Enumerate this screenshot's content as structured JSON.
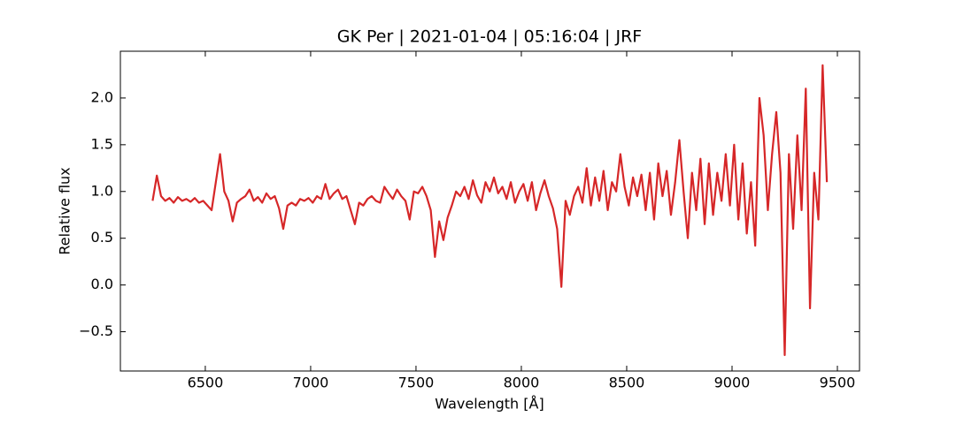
{
  "chart_data": {
    "type": "line",
    "title": "GK Per | 2021-01-04 | 05:16:04 | JRF",
    "xlabel": "Wavelength [Å]",
    "ylabel": "Relative flux",
    "xlim": [
      6097,
      9605
    ],
    "ylim": [
      -0.92,
      2.5
    ],
    "xticks": [
      6500,
      7000,
      7500,
      8000,
      8500,
      9000,
      9500
    ],
    "yticks": [
      {
        "value": -0.5,
        "label": "−0.5"
      },
      {
        "value": 0,
        "label": "0.0"
      },
      0.5,
      {
        "value": 1,
        "label": "1.0"
      },
      1.5,
      {
        "value": 2,
        "label": "2.0"
      }
    ],
    "grid": false,
    "x": [
      6250,
      6270,
      6290,
      6310,
      6330,
      6350,
      6370,
      6390,
      6410,
      6430,
      6450,
      6470,
      6490,
      6510,
      6530,
      6550,
      6570,
      6590,
      6610,
      6630,
      6650,
      6670,
      6690,
      6710,
      6730,
      6750,
      6770,
      6790,
      6810,
      6830,
      6850,
      6870,
      6890,
      6910,
      6930,
      6950,
      6970,
      6990,
      7010,
      7030,
      7050,
      7070,
      7090,
      7110,
      7130,
      7150,
      7170,
      7190,
      7210,
      7230,
      7250,
      7270,
      7290,
      7310,
      7330,
      7350,
      7370,
      7390,
      7410,
      7430,
      7450,
      7470,
      7490,
      7510,
      7530,
      7550,
      7570,
      7590,
      7610,
      7630,
      7650,
      7670,
      7690,
      7710,
      7730,
      7750,
      7770,
      7790,
      7810,
      7830,
      7850,
      7870,
      7890,
      7910,
      7930,
      7950,
      7970,
      7990,
      8010,
      8030,
      8050,
      8070,
      8090,
      8110,
      8130,
      8150,
      8170,
      8190,
      8210,
      8230,
      8250,
      8270,
      8290,
      8310,
      8330,
      8350,
      8370,
      8390,
      8410,
      8430,
      8450,
      8470,
      8490,
      8510,
      8530,
      8550,
      8570,
      8590,
      8610,
      8630,
      8650,
      8670,
      8690,
      8710,
      8730,
      8750,
      8770,
      8790,
      8810,
      8830,
      8850,
      8870,
      8890,
      8910,
      8930,
      8950,
      8970,
      8990,
      9010,
      9030,
      9050,
      9070,
      9090,
      9110,
      9130,
      9150,
      9170,
      9190,
      9210,
      9230,
      9250,
      9270,
      9290,
      9310,
      9330,
      9350,
      9370,
      9390,
      9410,
      9430,
      9450
    ],
    "series": [
      {
        "color": "#d62728",
        "values": [
          0.9,
          1.17,
          0.95,
          0.9,
          0.93,
          0.88,
          0.94,
          0.9,
          0.92,
          0.89,
          0.93,
          0.88,
          0.9,
          0.85,
          0.8,
          1.1,
          1.4,
          1.0,
          0.9,
          0.68,
          0.88,
          0.92,
          0.95,
          1.02,
          0.9,
          0.94,
          0.88,
          0.98,
          0.92,
          0.95,
          0.82,
          0.6,
          0.85,
          0.88,
          0.85,
          0.92,
          0.9,
          0.93,
          0.88,
          0.95,
          0.92,
          1.08,
          0.92,
          0.98,
          1.02,
          0.92,
          0.95,
          0.8,
          0.65,
          0.88,
          0.85,
          0.92,
          0.95,
          0.9,
          0.88,
          1.05,
          0.98,
          0.92,
          1.02,
          0.95,
          0.9,
          0.7,
          1.0,
          0.98,
          1.05,
          0.95,
          0.8,
          0.3,
          0.68,
          0.48,
          0.72,
          0.85,
          1.0,
          0.95,
          1.05,
          0.92,
          1.12,
          0.96,
          0.88,
          1.1,
          1.0,
          1.15,
          0.98,
          1.05,
          0.92,
          1.1,
          0.88,
          1.0,
          1.08,
          0.9,
          1.1,
          0.8,
          0.98,
          1.12,
          0.95,
          0.82,
          0.6,
          -0.02,
          0.9,
          0.75,
          0.95,
          1.05,
          0.88,
          1.25,
          0.85,
          1.15,
          0.9,
          1.22,
          0.8,
          1.1,
          1.0,
          1.4,
          1.05,
          0.85,
          1.15,
          0.95,
          1.18,
          0.8,
          1.2,
          0.7,
          1.3,
          0.95,
          1.22,
          0.75,
          1.1,
          1.55,
          1.0,
          0.5,
          1.2,
          0.8,
          1.35,
          0.65,
          1.3,
          0.75,
          1.2,
          0.9,
          1.4,
          0.85,
          1.5,
          0.7,
          1.3,
          0.55,
          1.1,
          0.42,
          2.0,
          1.6,
          0.8,
          1.4,
          1.85,
          1.2,
          -0.75,
          1.4,
          0.6,
          1.6,
          0.8,
          2.1,
          -0.25,
          1.2,
          0.7,
          2.35,
          1.1
        ]
      }
    ]
  }
}
